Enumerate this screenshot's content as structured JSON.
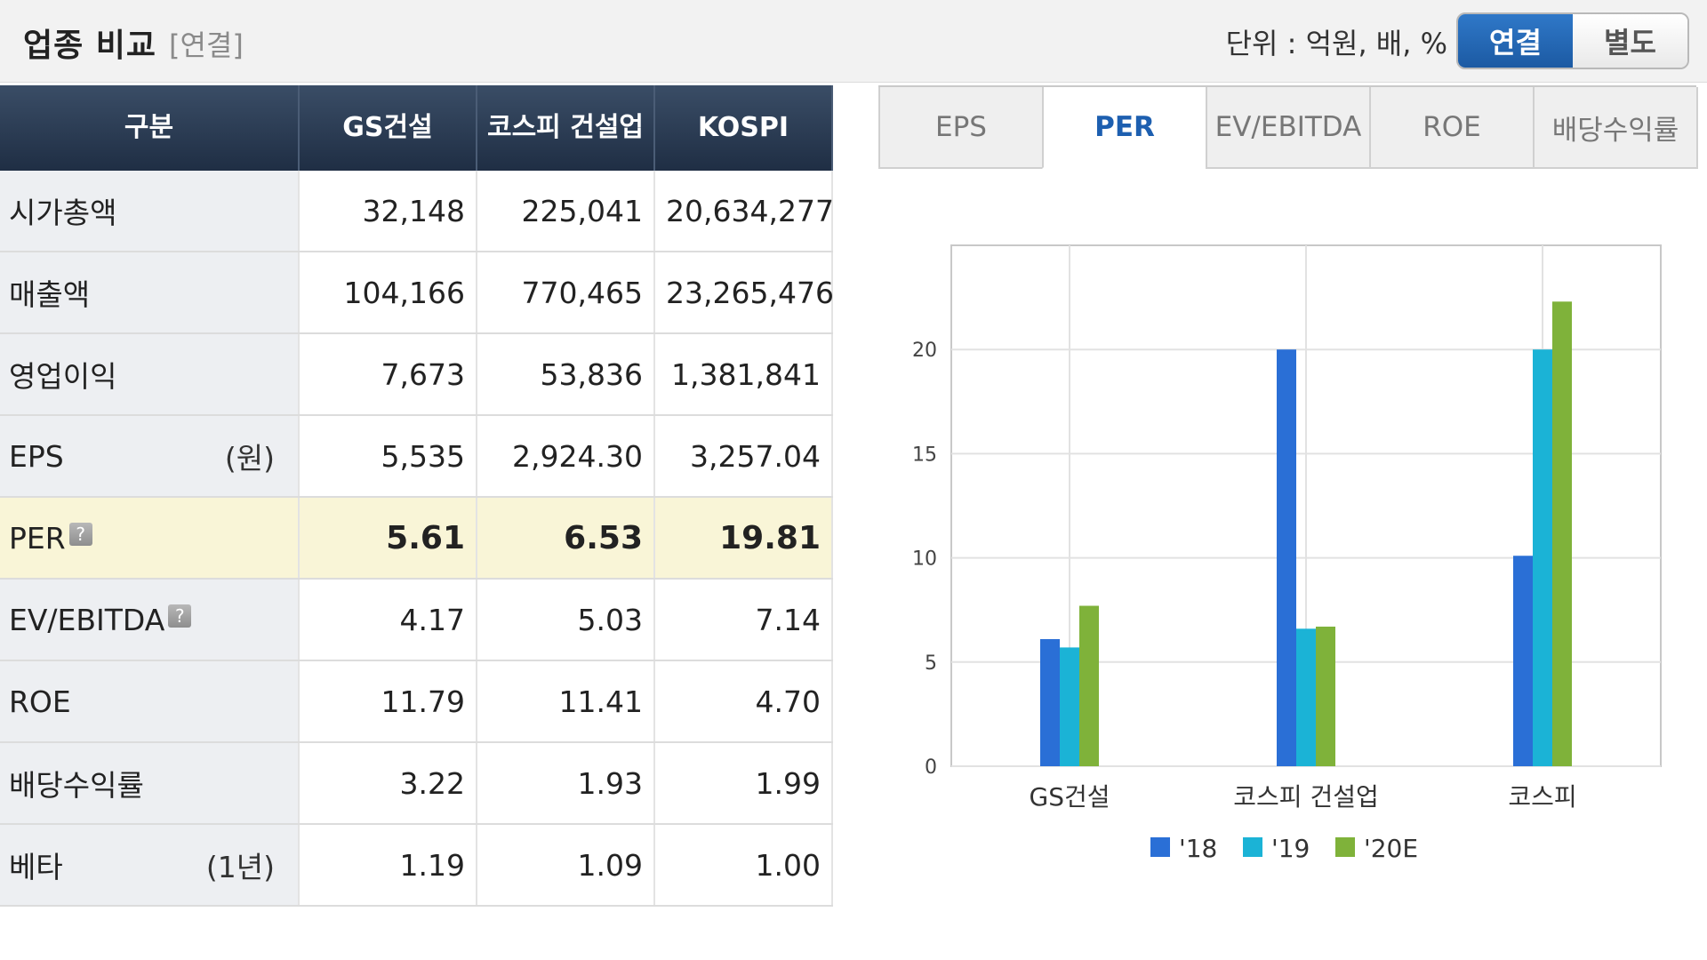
{
  "header": {
    "title": "업종 비교",
    "subtitle": "[연결]",
    "unit": "단위 : 억원, 배, %",
    "toggle": {
      "active": "연결",
      "inactive": "별도"
    }
  },
  "table": {
    "columns": [
      "구분",
      "GS건설",
      "코스피 건설업",
      "KOSPI"
    ],
    "rows": [
      {
        "label": "시가총액",
        "unit": "",
        "help": false,
        "values": [
          "32,148",
          "225,041",
          "20,634,277"
        ]
      },
      {
        "label": "매출액",
        "unit": "",
        "help": false,
        "values": [
          "104,166",
          "770,465",
          "23,265,476"
        ]
      },
      {
        "label": "영업이익",
        "unit": "",
        "help": false,
        "values": [
          "7,673",
          "53,836",
          "1,381,841"
        ]
      },
      {
        "label": "EPS",
        "unit": "(원)",
        "help": false,
        "values": [
          "5,535",
          "2,924.30",
          "3,257.04"
        ]
      },
      {
        "label": "PER",
        "unit": "",
        "help": true,
        "highlight": true,
        "values": [
          "5.61",
          "6.53",
          "19.81"
        ]
      },
      {
        "label": "EV/EBITDA",
        "unit": "",
        "help": true,
        "values": [
          "4.17",
          "5.03",
          "7.14"
        ]
      },
      {
        "label": "ROE",
        "unit": "",
        "help": false,
        "values": [
          "11.79",
          "11.41",
          "4.70"
        ]
      },
      {
        "label": "배당수익률",
        "unit": "",
        "help": false,
        "values": [
          "3.22",
          "1.93",
          "1.99"
        ]
      },
      {
        "label": "베타",
        "unit": "(1년)",
        "help": false,
        "values": [
          "1.19",
          "1.09",
          "1.00"
        ]
      }
    ]
  },
  "tabs": [
    {
      "label": "EPS",
      "active": false
    },
    {
      "label": "PER",
      "active": true
    },
    {
      "label": "EV/EBITDA",
      "active": false
    },
    {
      "label": "ROE",
      "active": false
    },
    {
      "label": "배당수익률",
      "active": false
    }
  ],
  "chart_data": {
    "type": "bar",
    "title": "",
    "xlabel": "",
    "ylabel": "",
    "categories": [
      "GS건설",
      "코스피  건설업",
      "코스피"
    ],
    "series": [
      {
        "name": "'18",
        "color": "#2a6fd6",
        "values": [
          6.1,
          20.0,
          10.1
        ]
      },
      {
        "name": "'19",
        "color": "#1bb3d6",
        "values": [
          5.7,
          6.6,
          20.0
        ]
      },
      {
        "name": "'20E",
        "color": "#7fb23a",
        "values": [
          7.7,
          6.7,
          22.3
        ]
      }
    ],
    "ylim": [
      0,
      25
    ],
    "yticks": [
      0,
      5,
      10,
      15,
      20
    ],
    "grid": true,
    "legend": "bottom"
  },
  "colors": {
    "header_dark": "#1f2e44",
    "accent_blue": "#1d5fb0",
    "highlight_row": "#f9f5d7"
  }
}
